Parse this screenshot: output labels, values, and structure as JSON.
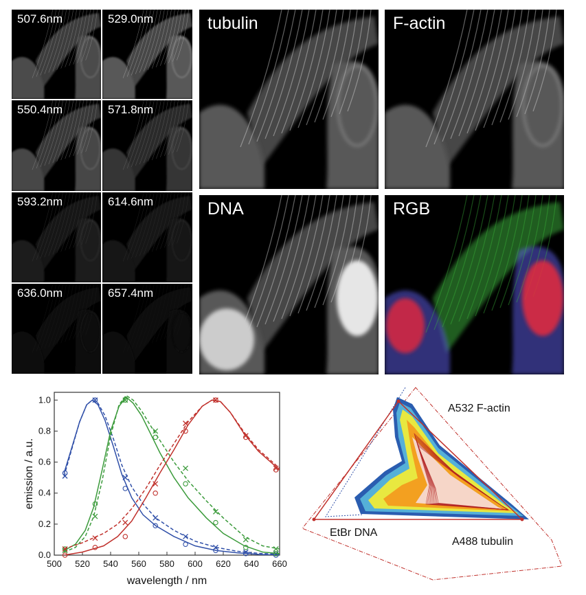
{
  "colors": {
    "blue": "#2f4fa8",
    "green": "#3a9a3a",
    "red": "#c0302b",
    "background": "#000000"
  },
  "images": {
    "spectral_tiles": [
      {
        "label": "507.6nm",
        "brightness": 0.85
      },
      {
        "label": "529.0nm",
        "brightness": 1.0
      },
      {
        "label": "550.4nm",
        "brightness": 0.8
      },
      {
        "label": "571.8nm",
        "brightness": 0.6
      },
      {
        "label": "593.2nm",
        "brightness": 0.35
      },
      {
        "label": "614.6nm",
        "brightness": 0.28
      },
      {
        "label": "636.0nm",
        "brightness": 0.16
      },
      {
        "label": "657.4nm",
        "brightness": 0.12
      }
    ],
    "channels": [
      {
        "label": "tubulin"
      },
      {
        "label": "F-actin"
      },
      {
        "label": "DNA"
      },
      {
        "label": "RGB"
      }
    ]
  },
  "chart_data": [
    {
      "type": "line",
      "xlabel": "wavelength / nm",
      "ylabel": "emission / a.u.",
      "xlim": [
        500,
        660
      ],
      "ylim": [
        0,
        1.05
      ],
      "xticks": [
        500,
        520,
        540,
        560,
        580,
        600,
        620,
        640,
        660
      ],
      "yticks": [
        0.0,
        0.2,
        0.4,
        0.6,
        0.8,
        1.0
      ],
      "sample_x": [
        507.6,
        529.0,
        550.4,
        571.8,
        593.2,
        614.6,
        636.0,
        657.4
      ],
      "series": [
        {
          "color": "#2f4fa8",
          "style": "solid",
          "marker": "o",
          "values": [
            0.53,
            1.0,
            0.43,
            0.19,
            0.07,
            0.03,
            0.01,
            0.0
          ],
          "curve_x": [
            507,
            512,
            518,
            523,
            527,
            531,
            536,
            542,
            548,
            555,
            563,
            572,
            585,
            600,
            615,
            630,
            645,
            660
          ],
          "curve_y": [
            0.53,
            0.68,
            0.86,
            0.97,
            1.0,
            0.97,
            0.87,
            0.7,
            0.52,
            0.37,
            0.26,
            0.19,
            0.12,
            0.06,
            0.03,
            0.015,
            0.005,
            0.0
          ]
        },
        {
          "color": "#2f4fa8",
          "style": "dashed",
          "marker": "x",
          "values": [
            0.51,
            1.0,
            0.5,
            0.24,
            0.12,
            0.05,
            0.02,
            0.01
          ],
          "curve_x": [
            507,
            512,
            518,
            523,
            527,
            531,
            536,
            542,
            548,
            555,
            563,
            572,
            585,
            600,
            615,
            630,
            645,
            660
          ],
          "curve_y": [
            0.51,
            0.67,
            0.86,
            0.97,
            1.0,
            0.98,
            0.9,
            0.75,
            0.58,
            0.44,
            0.33,
            0.24,
            0.16,
            0.09,
            0.05,
            0.025,
            0.012,
            0.005
          ]
        },
        {
          "color": "#3a9a3a",
          "style": "solid",
          "marker": "o",
          "values": [
            0.04,
            0.33,
            1.0,
            0.76,
            0.46,
            0.21,
            0.05,
            0.01
          ],
          "curve_x": [
            507,
            515,
            522,
            528,
            534,
            540,
            546,
            551,
            556,
            562,
            568,
            575,
            585,
            595,
            608,
            620,
            635,
            648,
            660
          ],
          "curve_y": [
            0.03,
            0.07,
            0.16,
            0.31,
            0.55,
            0.8,
            0.96,
            1.02,
            0.98,
            0.9,
            0.79,
            0.66,
            0.5,
            0.37,
            0.24,
            0.14,
            0.06,
            0.02,
            0.01
          ]
        },
        {
          "color": "#3a9a3a",
          "style": "dashed",
          "marker": "x",
          "values": [
            0.03,
            0.25,
            1.0,
            0.8,
            0.56,
            0.28,
            0.1,
            0.04
          ],
          "curve_x": [
            507,
            515,
            522,
            528,
            534,
            540,
            546,
            551,
            556,
            562,
            568,
            575,
            585,
            595,
            608,
            620,
            635,
            648,
            660
          ],
          "curve_y": [
            0.02,
            0.05,
            0.12,
            0.25,
            0.48,
            0.77,
            0.97,
            1.03,
            1.0,
            0.93,
            0.84,
            0.74,
            0.6,
            0.48,
            0.35,
            0.24,
            0.12,
            0.06,
            0.04
          ]
        },
        {
          "color": "#c0302b",
          "style": "solid",
          "marker": "o",
          "values": [
            0.0,
            0.05,
            0.12,
            0.4,
            0.8,
            1.0,
            0.76,
            0.55
          ],
          "curve_x": [
            507,
            520,
            535,
            545,
            555,
            565,
            575,
            585,
            595,
            605,
            612,
            618,
            625,
            635,
            645,
            660
          ],
          "curve_y": [
            0.0,
            0.02,
            0.06,
            0.12,
            0.22,
            0.37,
            0.53,
            0.68,
            0.84,
            0.96,
            1.0,
            0.99,
            0.92,
            0.78,
            0.67,
            0.55
          ]
        },
        {
          "color": "#c0302b",
          "style": "dashed",
          "marker": "x",
          "values": [
            0.04,
            0.11,
            0.21,
            0.46,
            0.85,
            1.0,
            0.77,
            0.56
          ],
          "curve_x": [
            507,
            520,
            535,
            545,
            555,
            565,
            575,
            585,
            595,
            605,
            612,
            618,
            625,
            635,
            645,
            660
          ],
          "curve_y": [
            0.04,
            0.08,
            0.14,
            0.2,
            0.3,
            0.43,
            0.58,
            0.72,
            0.86,
            0.96,
            1.0,
            0.99,
            0.92,
            0.79,
            0.68,
            0.56
          ]
        }
      ]
    },
    {
      "type": "scatter",
      "labels": {
        "top": "A532  F-actin",
        "left": "EtBr  DNA",
        "right": "A488  tubulin"
      }
    }
  ]
}
